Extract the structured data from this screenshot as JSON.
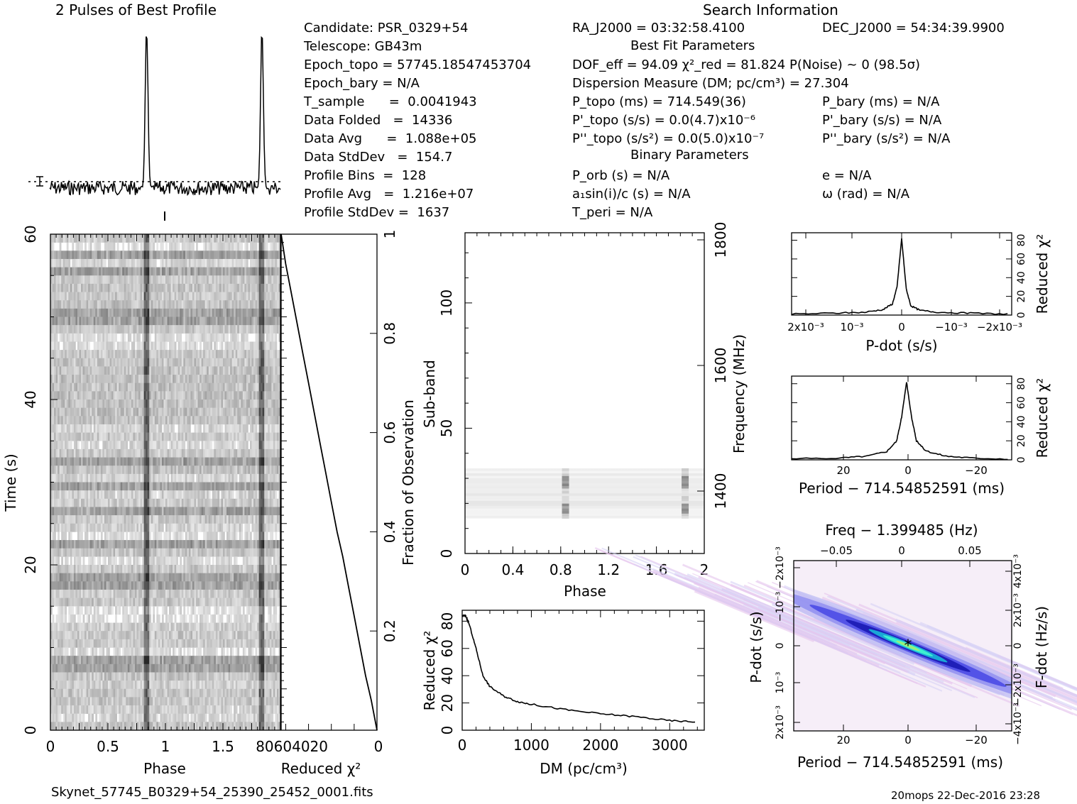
{
  "titles": {
    "profile": "2 Pulses of Best Profile",
    "search": "Search Information",
    "best_fit": "Best Fit Parameters",
    "binary": "Binary Parameters"
  },
  "info": {
    "candidate": "Candidate:  PSR_0329+54",
    "telescope": "Telescope:  GB43m",
    "epoch_topo": "Epoch_topo = 57745.18547453704",
    "epoch_bary": "Epoch_bary = N/A",
    "t_sample": "T_sample      =  0.0041943",
    "data_folded": "Data Folded   =  14336",
    "data_avg": "Data Avg      =  1.088e+05",
    "data_stddev": "Data StdDev   =  154.7",
    "profile_bins": "Profile Bins  =  128",
    "profile_avg": "Profile Avg   =  1.216e+07",
    "profile_stddev": "Profile StdDev =  1637",
    "ra": "RA_J2000 = 03:32:58.4100",
    "dec": "DEC_J2000 = 54:34:39.9900",
    "dof": "DOF_eff = 94.09  χ²_red = 81.824  P(Noise) ~ 0   (98.5σ)",
    "dm": "Dispersion Measure (DM; pc/cm³) = 27.304",
    "p_topo": "P_topo (ms) =  714.549(36)",
    "p_bary": "P_bary (ms) = N/A",
    "pd_topo": "P'_topo (s/s) = 0.0(4.7)x10⁻⁶",
    "pd_bary": "P'_bary (s/s) = N/A",
    "pdd_topo": "P''_topo (s/s²) = 0.0(5.0)x10⁻⁷",
    "pdd_bary": "P''_bary (s/s²) = N/A",
    "p_orb": "P_orb (s) = N/A",
    "e": "e = N/A",
    "a1sini": "a₁sin(i)/c (s) = N/A",
    "omega": "ω (rad) = N/A",
    "t_peri": "T_peri = N/A"
  },
  "footer": {
    "filename": "Skynet_57745_B0329+54_25390_25452_0001.fits",
    "stamp": "20mops 22-Dec-2016 23:28"
  },
  "chart_data": [
    {
      "id": "profile",
      "type": "line",
      "title": "2 Pulses of Best Profile",
      "x_range": [
        0,
        2
      ],
      "pulse_peaks": [
        0.84,
        1.84
      ],
      "note": "two pulses, baseline noise"
    },
    {
      "id": "time_phase",
      "type": "heatmap",
      "xlabel": "Phase",
      "ylabel": "Time (s)",
      "xlim": [
        0,
        2
      ],
      "ylim": [
        0,
        60
      ],
      "x_ticks": [
        "0",
        "0.5",
        "1",
        "1.5"
      ],
      "y_ticks": [
        "0",
        "20",
        "40",
        "60"
      ],
      "pulse_phases": [
        0.84,
        1.84
      ]
    },
    {
      "id": "redchi_time",
      "type": "line",
      "xlabel": "Reduced χ²",
      "x_ticks": [
        "80",
        "60",
        "40",
        "20",
        "0"
      ],
      "right_label": "Fraction of Observation",
      "right_ticks": [
        "0.2",
        "0.4",
        "0.6",
        "0.8",
        "1"
      ],
      "x": [
        0,
        5,
        10,
        15,
        20,
        25,
        30,
        35,
        40,
        45,
        50,
        55,
        60,
        65,
        70,
        75,
        80,
        84
      ],
      "y": [
        0,
        0.06,
        0.11,
        0.17,
        0.23,
        0.29,
        0.35,
        0.4,
        0.46,
        0.52,
        0.58,
        0.64,
        0.7,
        0.76,
        0.82,
        0.88,
        0.94,
        1.0
      ]
    },
    {
      "id": "subband_phase",
      "type": "heatmap",
      "xlabel": "Phase",
      "ylabel": "Sub-band",
      "right_label": "Frequency (MHz)",
      "x_ticks": [
        "0",
        "0.4",
        "0.8",
        "1.2",
        "1.6",
        "2"
      ],
      "y_ticks": [
        "0",
        "50",
        "100"
      ],
      "right_ticks": [
        "1400",
        "1600",
        "1800"
      ],
      "xlim": [
        0,
        2
      ],
      "ylim": [
        0,
        128
      ],
      "active_band_range": [
        14,
        34
      ],
      "pulse_phases": [
        0.84,
        1.84
      ]
    },
    {
      "id": "dm_curve",
      "type": "line",
      "xlabel": "DM (pc/cm³)",
      "ylabel": "Reduced χ²",
      "x_ticks": [
        "0",
        "1000",
        "2000",
        "3000"
      ],
      "y_ticks": [
        "0",
        "20",
        "40",
        "60",
        "80"
      ],
      "xlim": [
        0,
        3500
      ],
      "ylim": [
        0,
        88
      ],
      "x": [
        0,
        50,
        100,
        200,
        300,
        400,
        600,
        800,
        1000,
        1500,
        2000,
        2500,
        3000,
        3400
      ],
      "y": [
        84,
        84,
        78,
        60,
        40,
        32,
        25,
        21,
        19,
        15,
        12,
        10,
        7,
        6
      ]
    },
    {
      "id": "pdot_curve",
      "type": "line",
      "xlabel": "P-dot (s/s)",
      "ylabel": "Reduced χ²",
      "x_ticks": [
        "2x10⁻³",
        "10⁻³",
        "0",
        "−10⁻³",
        "−2x10⁻³"
      ],
      "y_ticks": [
        "0",
        "20",
        "40",
        "60",
        "80"
      ],
      "xlim": [
        0.0024,
        -0.0024
      ],
      "ylim": [
        0,
        88
      ],
      "x": [
        0.0024,
        0.0015,
        0.0008,
        0.0004,
        0.0002,
        0.0001,
        0,
        -0.0001,
        -0.0002,
        -0.0004,
        -0.0008,
        -0.0015,
        -0.0024
      ],
      "y": [
        1,
        2,
        3,
        6,
        12,
        30,
        82,
        28,
        10,
        5,
        3,
        2,
        1
      ]
    },
    {
      "id": "period_curve",
      "type": "line",
      "xlabel": "Period − 714.54852591 (ms)",
      "ylabel": "Reduced χ²",
      "x_ticks": [
        "20",
        "0",
        "−20"
      ],
      "y_ticks": [
        "0",
        "20",
        "40",
        "60",
        "80"
      ],
      "xlim": [
        35,
        -32
      ],
      "ylim": [
        0,
        88
      ],
      "x": [
        35,
        20,
        12,
        6,
        3,
        1.5,
        0,
        -1.5,
        -3,
        -6,
        -12,
        -20,
        -32
      ],
      "y": [
        1,
        2,
        4,
        9,
        20,
        45,
        82,
        45,
        20,
        9,
        4,
        2,
        1
      ]
    },
    {
      "id": "p_pdot_plane",
      "type": "heatmap",
      "title": "Freq − 1.399485 (Hz)",
      "xlabel": "Period − 714.54852591 (ms)",
      "ylabel": "P-dot (s/s)",
      "right_label": "F-dot (Hz/s)",
      "x_ticks": [
        "20",
        "0",
        "−20"
      ],
      "top_ticks": [
        "−0.05",
        "0",
        "0.05"
      ],
      "y_ticks": [
        "2x10⁻³",
        "10⁻³",
        "0",
        "−10⁻³",
        "−2x10⁻³"
      ],
      "right_ticks": [
        "−4x10⁻³",
        "−2x10⁻³",
        "0",
        "2x10⁻³",
        "4x10⁻³"
      ],
      "peak": [
        0,
        0
      ]
    }
  ]
}
